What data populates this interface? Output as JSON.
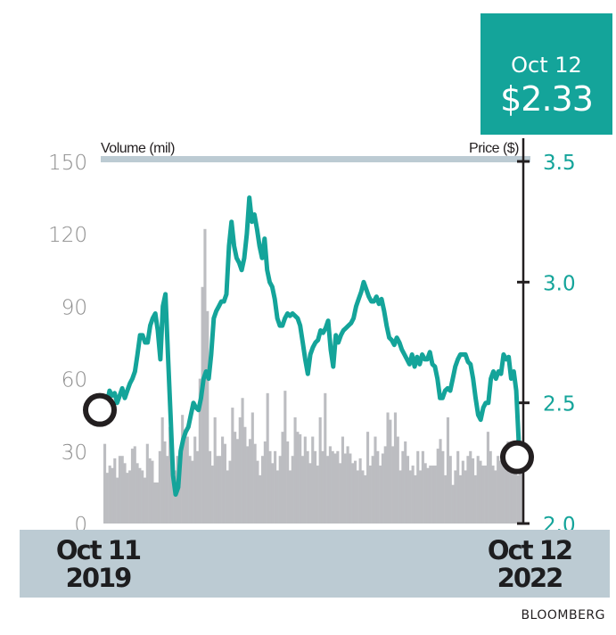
{
  "callout": {
    "date": "Oct 12",
    "price": "$2.33"
  },
  "source": "BLOOMBERG",
  "chart_data": {
    "type": "bar+line",
    "title": "",
    "left_axis": {
      "label": "Volume (mil)",
      "ticks": [
        0,
        30,
        60,
        90,
        120,
        150
      ],
      "range": [
        0,
        150
      ]
    },
    "right_axis": {
      "label": "Price ($)",
      "ticks": [
        "2.0",
        "2.5",
        "3.0",
        "3.5"
      ],
      "range": [
        2.0,
        3.5
      ]
    },
    "x_labels": [
      {
        "line1": "Oct 11",
        "line2": "2019"
      },
      {
        "line1": "Oct 12",
        "line2": "2022"
      }
    ],
    "start_marker": {
      "date": "Oct 11 2019",
      "price": 2.5
    },
    "end_marker": {
      "date": "Oct 12 2022",
      "price": 2.33
    },
    "colors": {
      "price_line": "#14a49a",
      "volume": "#bcbdc1",
      "axis": "#231f20",
      "band": "#bccbd3",
      "left_tick_text": "#8c8c8c",
      "right_tick_text": "#14a49a"
    },
    "series": [
      {
        "name": "Price ($)",
        "type": "line",
        "values": [
          2.5,
          2.55,
          2.53,
          2.54,
          2.5,
          2.53,
          2.56,
          2.52,
          2.55,
          2.58,
          2.6,
          2.63,
          2.7,
          2.78,
          2.78,
          2.75,
          2.75,
          2.82,
          2.85,
          2.87,
          2.8,
          2.68,
          2.9,
          2.95,
          2.7,
          2.45,
          2.2,
          2.12,
          2.15,
          2.3,
          2.35,
          2.38,
          2.4,
          2.45,
          2.5,
          2.48,
          2.47,
          2.52,
          2.6,
          2.63,
          2.6,
          2.7,
          2.85,
          2.88,
          2.9,
          2.92,
          2.92,
          2.95,
          3.15,
          3.25,
          3.15,
          3.1,
          3.08,
          3.05,
          3.1,
          3.2,
          3.35,
          3.25,
          3.28,
          3.22,
          3.15,
          3.1,
          3.18,
          3.05,
          3.0,
          2.98,
          2.93,
          2.85,
          2.82,
          2.82,
          2.85,
          2.87,
          2.86,
          2.87,
          2.86,
          2.85,
          2.82,
          2.75,
          2.68,
          2.62,
          2.7,
          2.73,
          2.75,
          2.76,
          2.8,
          2.79,
          2.81,
          2.84,
          2.72,
          2.65,
          2.78,
          2.75,
          2.78,
          2.8,
          2.81,
          2.82,
          2.83,
          2.85,
          2.9,
          2.93,
          2.96,
          3.0,
          2.97,
          2.94,
          2.92,
          2.92,
          2.94,
          2.91,
          2.93,
          2.88,
          2.82,
          2.77,
          2.76,
          2.74,
          2.77,
          2.75,
          2.72,
          2.7,
          2.68,
          2.66,
          2.7,
          2.65,
          2.69,
          2.66,
          2.7,
          2.68,
          2.68,
          2.71,
          2.66,
          2.65,
          2.6,
          2.52,
          2.52,
          2.55,
          2.56,
          2.55,
          2.6,
          2.65,
          2.68,
          2.7,
          2.7,
          2.7,
          2.67,
          2.66,
          2.6,
          2.52,
          2.45,
          2.43,
          2.48,
          2.5,
          2.5,
          2.6,
          2.63,
          2.6,
          2.63,
          2.62,
          2.7,
          2.68,
          2.69,
          2.6,
          2.63,
          2.55,
          2.33
        ]
      },
      {
        "name": "Volume (mil)",
        "type": "bar",
        "values": [
          33,
          21,
          24,
          23,
          27,
          19,
          28,
          28,
          25,
          21,
          22,
          31,
          32,
          25,
          23,
          22,
          19,
          33,
          27,
          26,
          17,
          17,
          30,
          44,
          34,
          28,
          40,
          24,
          22,
          28,
          27,
          45,
          39,
          36,
          28,
          26,
          36,
          30,
          60,
          98,
          122,
          88,
          30,
          24,
          44,
          28,
          28,
          36,
          33,
          22,
          26,
          48,
          38,
          35,
          44,
          52,
          40,
          32,
          35,
          46,
          33,
          26,
          20,
          28,
          34,
          54,
          30,
          25,
          30,
          22,
          28,
          38,
          55,
          34,
          22,
          28,
          44,
          38,
          37,
          28,
          36,
          30,
          25,
          36,
          30,
          24,
          44,
          30,
          54,
          28,
          32,
          30,
          29,
          30,
          25,
          36,
          29,
          32,
          29,
          25,
          26,
          22,
          27,
          22,
          20,
          38,
          24,
          28,
          36,
          30,
          24,
          29,
          32,
          46,
          43,
          32,
          46,
          36,
          22,
          30,
          34,
          28,
          22,
          24,
          20,
          30,
          22,
          30,
          25,
          23,
          24,
          24,
          24,
          31,
          35,
          30,
          20,
          44,
          28,
          16,
          22,
          30,
          20,
          26,
          22,
          28,
          30,
          27,
          20,
          28,
          26,
          24,
          24,
          38,
          30,
          24,
          22,
          28,
          26,
          30,
          24,
          34,
          22,
          32,
          26,
          20,
          24,
          22
        ]
      }
    ],
    "legend": "none",
    "grid": false
  }
}
